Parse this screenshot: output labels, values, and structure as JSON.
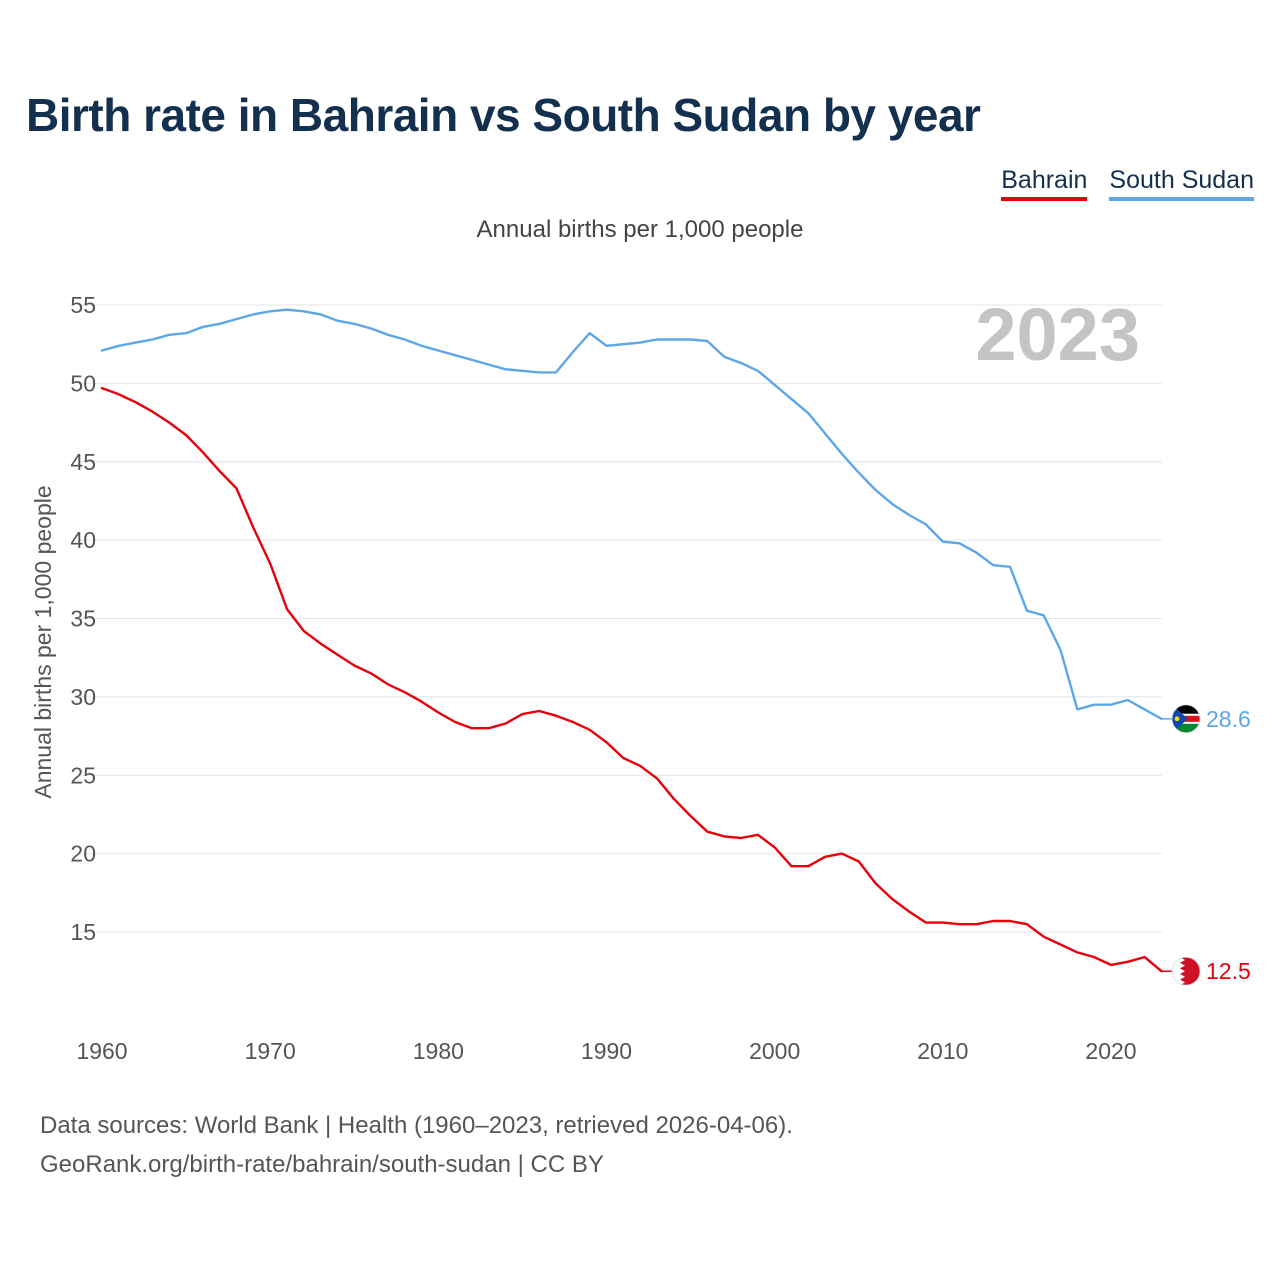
{
  "title": "Birth rate in Bahrain vs South Sudan by year",
  "legend": {
    "bahrain": "Bahrain",
    "south_sudan": "South Sudan"
  },
  "footer": {
    "sources": "Data sources: World Bank | Health (1960–2023, retrieved 2026-04-06).",
    "attribution": "GeoRank.org/birth-rate/bahrain/south-sudan | CC BY"
  },
  "chart_data": {
    "type": "line",
    "title": "Birth rate in Bahrain vs South Sudan by year",
    "subtitle": "Annual births per 1,000 people",
    "ylabel": "Annual births per 1,000 people",
    "xlabel": "",
    "year_label": "2023",
    "xlim": [
      1960,
      2023
    ],
    "ylim": [
      10,
      55
    ],
    "x_ticks": [
      1960,
      1970,
      1980,
      1990,
      2000,
      2010,
      2020
    ],
    "y_ticks": [
      15,
      20,
      25,
      30,
      35,
      40,
      45,
      50,
      55
    ],
    "grid": true,
    "x": [
      1960,
      1961,
      1962,
      1963,
      1964,
      1965,
      1966,
      1967,
      1968,
      1969,
      1970,
      1971,
      1972,
      1973,
      1974,
      1975,
      1976,
      1977,
      1978,
      1979,
      1980,
      1981,
      1982,
      1983,
      1984,
      1985,
      1986,
      1987,
      1988,
      1989,
      1990,
      1991,
      1992,
      1993,
      1994,
      1995,
      1996,
      1997,
      1998,
      1999,
      2000,
      2001,
      2002,
      2003,
      2004,
      2005,
      2006,
      2007,
      2008,
      2009,
      2010,
      2011,
      2012,
      2013,
      2014,
      2015,
      2016,
      2017,
      2018,
      2019,
      2020,
      2021,
      2022,
      2023
    ],
    "series": [
      {
        "name": "Bahrain",
        "color": "#e8000b",
        "end_label": "12.5",
        "values": [
          49.7,
          49.3,
          48.8,
          48.2,
          47.5,
          46.7,
          45.6,
          44.4,
          43.3,
          40.8,
          38.5,
          35.6,
          34.2,
          33.4,
          32.7,
          32.0,
          31.5,
          30.8,
          30.3,
          29.7,
          29.0,
          28.4,
          28.0,
          28.0,
          28.3,
          28.9,
          29.1,
          28.8,
          28.4,
          27.9,
          27.1,
          26.1,
          25.6,
          24.8,
          23.5,
          22.4,
          21.4,
          21.1,
          21.0,
          21.2,
          20.4,
          19.2,
          19.2,
          19.8,
          20.0,
          19.5,
          18.1,
          17.1,
          16.3,
          15.6,
          15.6,
          15.5,
          15.5,
          15.7,
          15.7,
          15.5,
          14.7,
          14.2,
          13.7,
          13.4,
          12.9,
          13.1,
          13.4,
          12.5
        ]
      },
      {
        "name": "South Sudan",
        "color": "#5da7e8",
        "end_label": "28.6",
        "values": [
          52.1,
          52.4,
          52.6,
          52.8,
          53.1,
          53.2,
          53.6,
          53.8,
          54.1,
          54.4,
          54.6,
          54.7,
          54.6,
          54.4,
          54.0,
          53.8,
          53.5,
          53.1,
          52.8,
          52.4,
          52.1,
          51.8,
          51.5,
          51.2,
          50.9,
          50.8,
          50.7,
          50.7,
          52.0,
          53.2,
          52.4,
          52.5,
          52.6,
          52.8,
          52.8,
          52.8,
          52.7,
          51.7,
          51.3,
          50.8,
          49.9,
          49.0,
          48.1,
          46.8,
          45.5,
          44.3,
          43.2,
          42.3,
          41.6,
          41.0,
          39.9,
          39.8,
          39.2,
          38.4,
          38.3,
          35.5,
          35.2,
          33.0,
          29.2,
          29.5,
          29.5,
          29.8,
          29.2,
          28.6
        ]
      }
    ]
  }
}
